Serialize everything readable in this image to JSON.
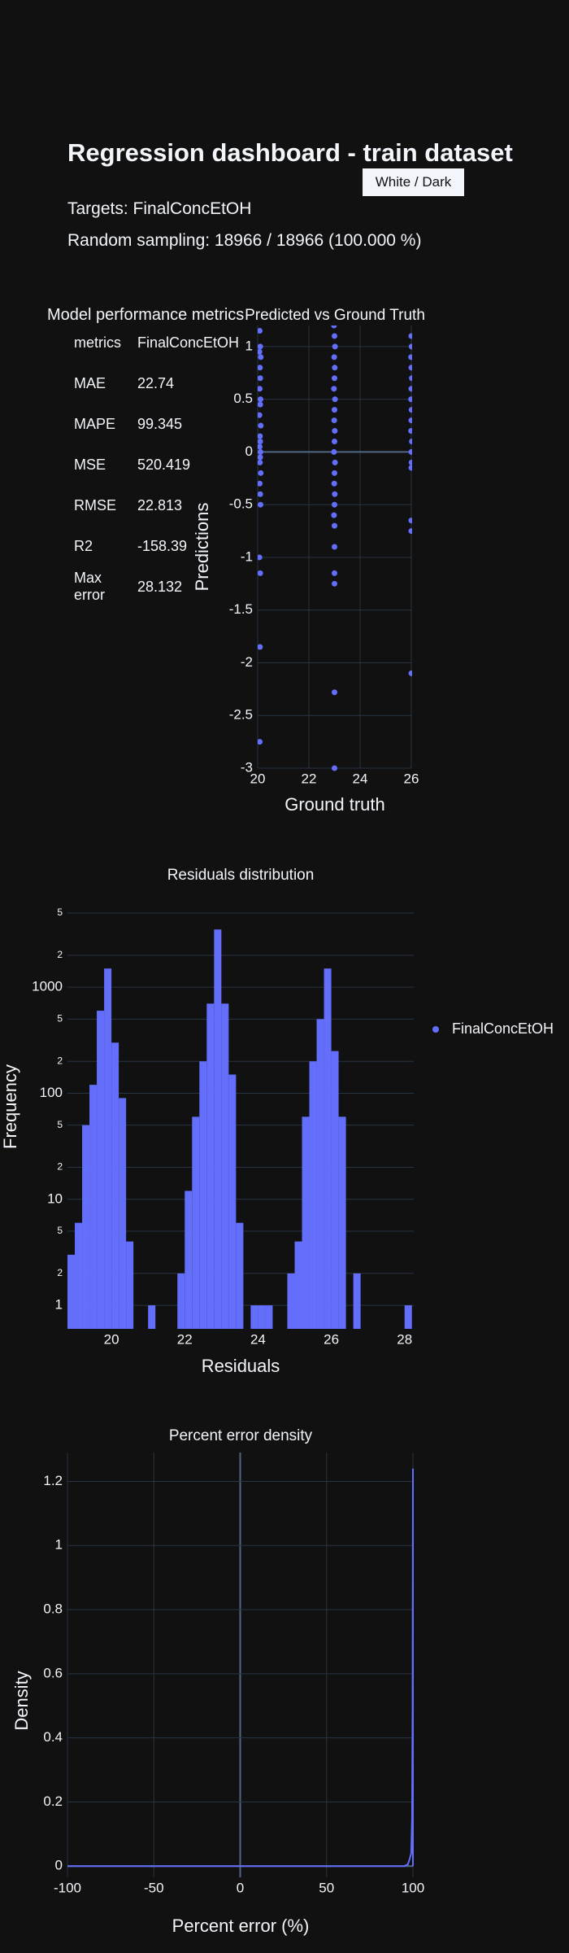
{
  "header": {
    "title": "Regression dashboard - train dataset",
    "button": "White / Dark",
    "targets": "Targets: FinalConcEtOH",
    "sampling": "Random sampling: 18966 / 18966 (100.000 %)"
  },
  "metrics": {
    "title": "Model performance metrics",
    "columns": [
      "metrics",
      "FinalConcEtOH"
    ],
    "rows": [
      [
        "MAE",
        22.74
      ],
      [
        "MAPE",
        99.345
      ],
      [
        "MSE",
        520.419
      ],
      [
        "RMSE",
        22.813
      ],
      [
        "R2",
        -158.39
      ],
      [
        "Max error",
        28.132
      ]
    ]
  },
  "chart_data": [
    {
      "type": "scatter",
      "title": "Predicted vs Ground Truth",
      "x_label": "Ground truth",
      "y_label": "Predictions",
      "color": "#636efa",
      "xlim": [
        20,
        26
      ],
      "ylim": [
        -3,
        1.2
      ],
      "xticks": [
        20,
        22,
        24,
        26
      ],
      "yticks": [
        1,
        0.5,
        0,
        -0.5,
        -1,
        -1.5,
        -2,
        -2.5,
        -3
      ],
      "grid": {
        "x": true,
        "y": true
      },
      "x": [
        20.08,
        20.1,
        20.07,
        20.12,
        20.09,
        20.1,
        20.08,
        20.11,
        20.1,
        20.07,
        20.12,
        20.09,
        20.1,
        20.08,
        20.11,
        20.1,
        20.09,
        20.12,
        20.08,
        20.1,
        20.11,
        20.07,
        20.1,
        20.09,
        20.08,
        22.98,
        23.0,
        23.02,
        22.99,
        23.01,
        23.0,
        22.98,
        23.02,
        23.0,
        22.99,
        23.01,
        23.0,
        22.98,
        23.02,
        23.0,
        22.99,
        23.01,
        23.0,
        22.98,
        23.0,
        23.0,
        23.0,
        23.0,
        23.0,
        23.0,
        26.0,
        26.01,
        25.99,
        26.0,
        26.02,
        26.0,
        25.99,
        26.01,
        26.0,
        25.99,
        26.02,
        26.0,
        26.01,
        26.0,
        26.0,
        26.0,
        26.0
      ],
      "values": [
        1.15,
        1.0,
        0.95,
        0.9,
        0.8,
        0.7,
        0.6,
        0.5,
        0.45,
        0.35,
        0.25,
        0.15,
        0.1,
        0.05,
        0,
        -0.05,
        -0.1,
        -0.2,
        -0.3,
        -0.4,
        -0.5,
        -1.0,
        -1.15,
        -1.85,
        -2.75,
        1.2,
        1.1,
        1.0,
        0.9,
        0.8,
        0.7,
        0.6,
        0.5,
        0.4,
        0.3,
        0.2,
        0.1,
        0,
        -0.1,
        -0.2,
        -0.3,
        -0.4,
        -0.5,
        -0.6,
        -0.7,
        -0.9,
        -1.15,
        -1.25,
        -2.28,
        -3.0,
        1.1,
        1.0,
        0.9,
        0.8,
        0.7,
        0.6,
        0.5,
        0.4,
        0.3,
        0.2,
        0.1,
        0,
        -0.1,
        -0.15,
        -0.65,
        -0.75,
        -2.1
      ]
    },
    {
      "type": "histogram",
      "title": "Residuals distribution",
      "x_label": "Residuals",
      "y_label": "Frequency",
      "log_y": true,
      "xlim": [
        18.8,
        28.25
      ],
      "ylim": [
        0.6,
        7000
      ],
      "xticks": [
        20,
        22,
        24,
        26,
        28
      ],
      "yticks": [
        1,
        2,
        5,
        10,
        {
          "value": 20,
          "label": "2"
        },
        {
          "value": 50,
          "label": "5"
        },
        100,
        {
          "value": 200,
          "label": "2"
        },
        {
          "value": 500,
          "label": "5"
        },
        1000,
        {
          "value": 2000,
          "label": "2"
        },
        {
          "value": 5000,
          "label": "5"
        }
      ],
      "grid": {
        "x": false,
        "y": true
      },
      "bins": [
        18.8,
        19.0,
        19.2,
        19.4,
        19.6,
        19.8,
        20.0,
        20.2,
        20.4,
        20.6,
        20.8,
        21.0,
        21.2,
        21.4,
        21.6,
        21.8,
        22.0,
        22.2,
        22.4,
        22.6,
        22.8,
        23.0,
        23.2,
        23.4,
        23.6,
        23.8,
        24.0,
        24.2,
        24.4,
        24.6,
        24.8,
        25.0,
        25.2,
        25.4,
        25.6,
        25.8,
        26.0,
        26.2,
        26.4,
        26.6,
        26.8,
        27.0,
        27.2,
        27.4,
        27.6,
        27.8,
        28.0,
        28.2
      ],
      "series": [
        {
          "name": "FinalConcEtOH",
          "color": "#636efa",
          "values": [
            3,
            6,
            50,
            120,
            600,
            1500,
            300,
            90,
            4,
            0,
            0,
            1,
            0,
            0,
            0,
            2,
            12,
            60,
            200,
            700,
            3500,
            700,
            150,
            6,
            0,
            1,
            1,
            1,
            0,
            0,
            2,
            4,
            60,
            200,
            500,
            1500,
            250,
            60,
            0,
            2,
            0,
            0,
            0,
            0,
            0,
            0,
            1
          ]
        }
      ]
    },
    {
      "type": "line",
      "title": "Percent error density",
      "x_label": "Percent error (%)",
      "y_label": "Density",
      "color": "#636efa",
      "xlim": [
        -100,
        100
      ],
      "ylim": [
        -0.035,
        1.29
      ],
      "xticks": [
        -100,
        -50,
        0,
        50,
        100
      ],
      "yticks": [
        0,
        0.2,
        0.4,
        0.6,
        0.8,
        1,
        1.2
      ],
      "grid": {
        "x": true,
        "y": true
      },
      "x": [
        -100,
        95,
        97,
        98,
        99,
        99.5,
        99.8,
        100,
        100
      ],
      "values": [
        0,
        0,
        0.005,
        0.02,
        0.04,
        0.15,
        0.5,
        1.24,
        0
      ]
    }
  ]
}
